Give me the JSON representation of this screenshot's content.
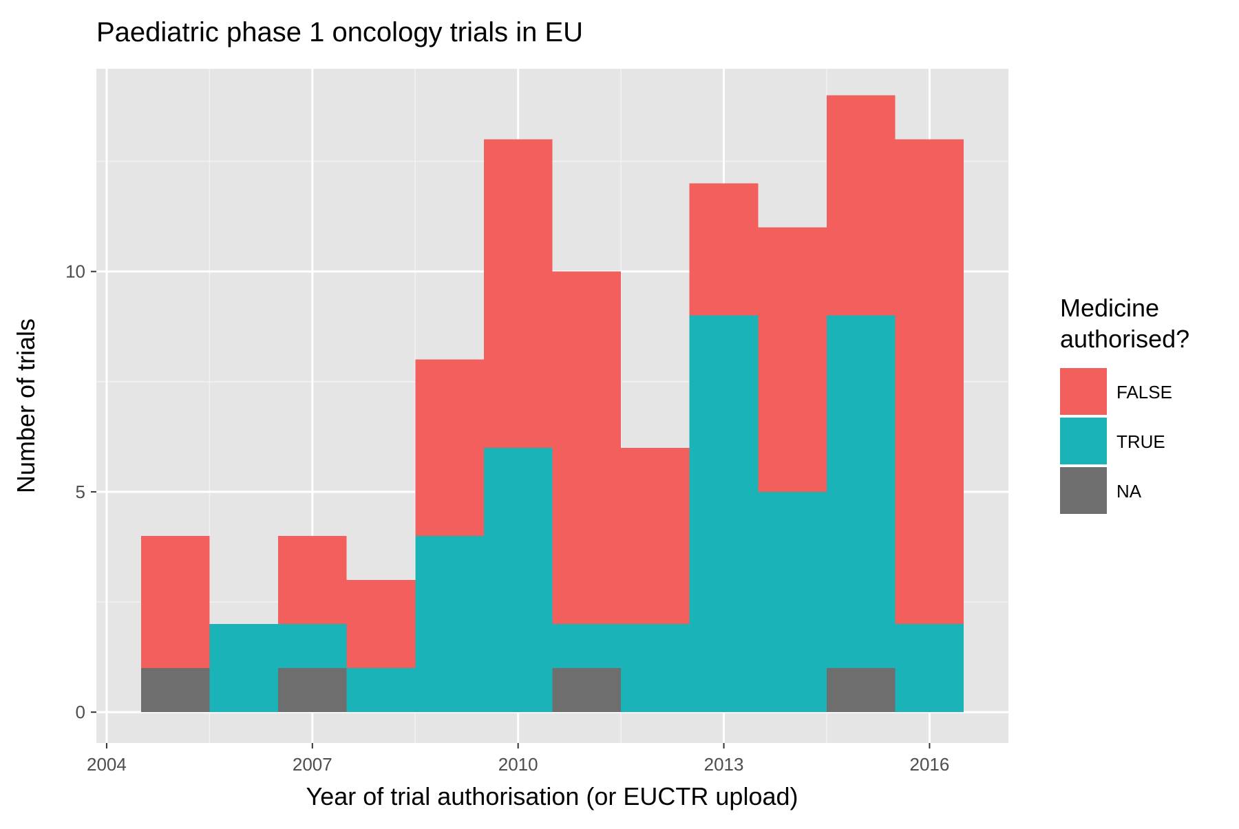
{
  "chart_data": {
    "type": "bar",
    "stacked": true,
    "title": "Paediatric phase 1 oncology trials in EU",
    "xlabel": "Year of trial authorisation (or EUCTR upload)",
    "ylabel": "Number of trials",
    "x_ticks": [
      "2004",
      "2007",
      "2010",
      "2013",
      "2016"
    ],
    "y_ticks": [
      "0",
      "5",
      "10"
    ],
    "xlim": [
      2003.85,
      2017.15
    ],
    "ylim": [
      -0.7,
      14.6
    ],
    "grid": true,
    "legend_position": "right",
    "legend_title": [
      "Medicine",
      "authorised?"
    ],
    "categories": [
      2005,
      2006,
      2007,
      2008,
      2009,
      2010,
      2011,
      2012,
      2013,
      2014,
      2015,
      2016
    ],
    "series": [
      {
        "name": "FALSE",
        "color": "#F25F5C",
        "values": [
          3,
          0,
          2,
          2,
          4,
          7,
          8,
          4,
          3,
          6,
          5,
          11
        ]
      },
      {
        "name": "TRUE",
        "color": "#1AB3B7",
        "values": [
          0,
          2,
          1,
          1,
          4,
          6,
          1,
          2,
          9,
          5,
          8,
          2
        ]
      },
      {
        "name": "NA",
        "color": "#6E6E6E",
        "values": [
          1,
          0,
          1,
          0,
          0,
          0,
          1,
          0,
          0,
          0,
          1,
          0
        ]
      }
    ]
  }
}
